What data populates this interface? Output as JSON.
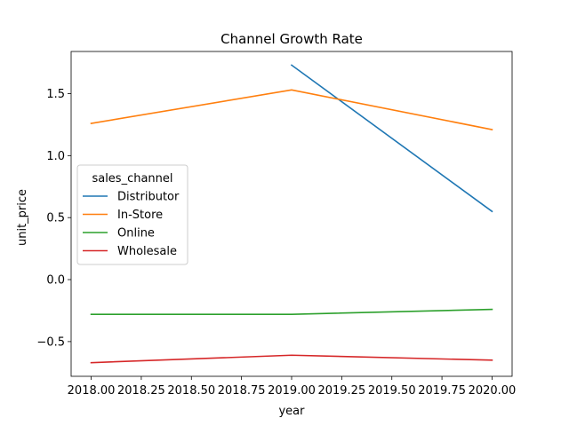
{
  "chart_data": {
    "type": "line",
    "title": "Channel Growth Rate",
    "xlabel": "year",
    "ylabel": "unit_price",
    "xlim": [
      2017.9,
      2020.1
    ],
    "ylim": [
      -0.78,
      1.84
    ],
    "x_ticks": [
      2018.0,
      2018.25,
      2018.5,
      2018.75,
      2019.0,
      2019.25,
      2019.5,
      2019.75,
      2020.0
    ],
    "x_tick_labels": [
      "2018.00",
      "2018.25",
      "2018.50",
      "2018.75",
      "2019.00",
      "2019.25",
      "2019.50",
      "2019.75",
      "2020.00"
    ],
    "y_ticks": [
      -0.5,
      0.0,
      0.5,
      1.0,
      1.5
    ],
    "y_tick_labels": [
      "−0.5",
      "0.0",
      "0.5",
      "1.0",
      "1.5"
    ],
    "grid": false,
    "legend": {
      "title": "sales_channel",
      "placement": "center-left"
    },
    "series": [
      {
        "name": "Distributor",
        "color": "#1f77b4",
        "points": [
          [
            2019,
            1.73
          ],
          [
            2020,
            0.55
          ]
        ]
      },
      {
        "name": "In-Store",
        "color": "#ff7f0e",
        "points": [
          [
            2018,
            1.26
          ],
          [
            2019,
            1.53
          ],
          [
            2020,
            1.21
          ]
        ]
      },
      {
        "name": "Online",
        "color": "#2ca02c",
        "points": [
          [
            2018,
            -0.28
          ],
          [
            2019,
            -0.28
          ],
          [
            2020,
            -0.24
          ]
        ]
      },
      {
        "name": "Wholesale",
        "color": "#d62728",
        "points": [
          [
            2018,
            -0.67
          ],
          [
            2019,
            -0.61
          ],
          [
            2020,
            -0.65
          ]
        ]
      }
    ]
  }
}
